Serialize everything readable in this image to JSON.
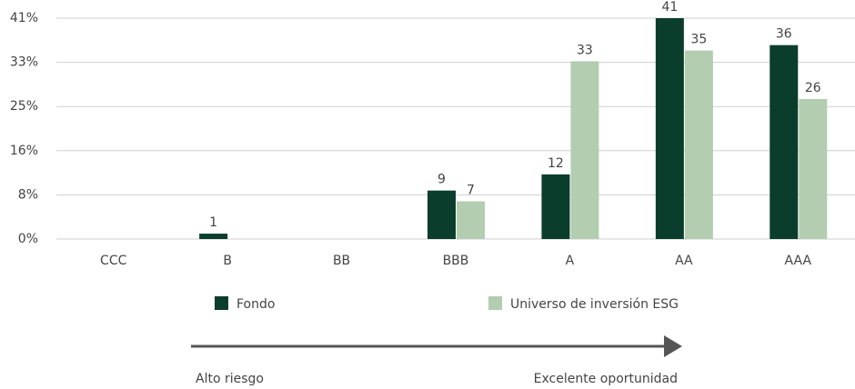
{
  "chart_data": {
    "type": "bar",
    "categories": [
      "CCC",
      "B",
      "BB",
      "BBB",
      "A",
      "AA",
      "AAA"
    ],
    "series": [
      {
        "name": "Fondo",
        "color": "#0b3d2c",
        "values": [
          null,
          1,
          null,
          9,
          12,
          41,
          36
        ]
      },
      {
        "name": "Universo de inversión ESG",
        "color": "#b2cdb0",
        "values": [
          null,
          null,
          null,
          7,
          33,
          35,
          26
        ]
      }
    ],
    "ylim": [
      0,
      41
    ],
    "yticks": [
      {
        "value": 0,
        "label": "0%"
      },
      {
        "value": 8.2,
        "label": "8%"
      },
      {
        "value": 16.4,
        "label": "16%"
      },
      {
        "value": 24.6,
        "label": "25%"
      },
      {
        "value": 32.8,
        "label": "33%"
      },
      {
        "value": 41,
        "label": "41%"
      }
    ],
    "grid": true,
    "annotations": [
      "Alto riesgo",
      "Excelente oportunidad"
    ]
  }
}
